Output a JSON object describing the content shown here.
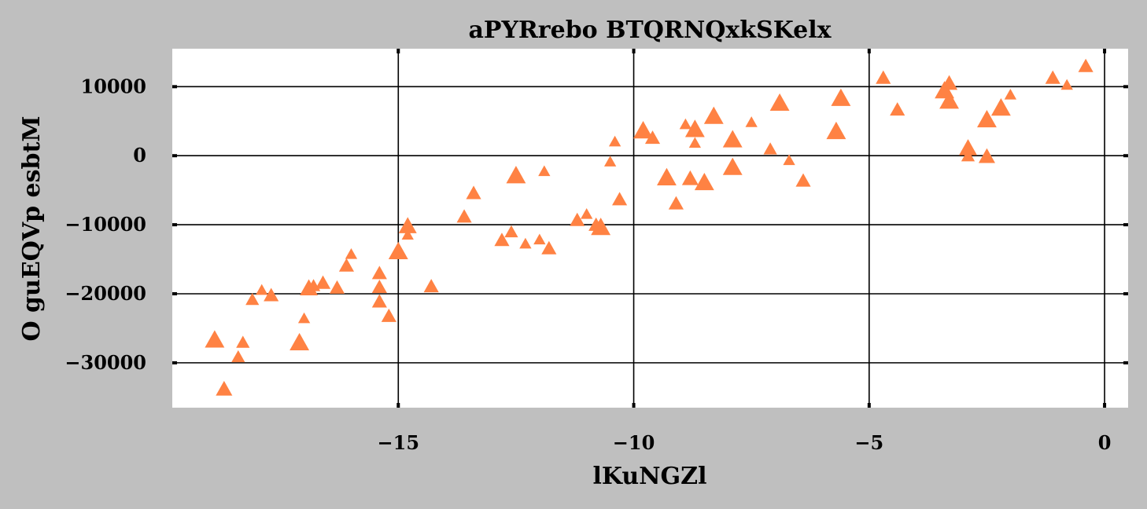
{
  "chart_data": {
    "type": "scatter",
    "title": "aPYRrebo  BTQRNQxkSKelx",
    "xlabel": "lKuNGZl",
    "ylabel": "O guEQVp esbtM",
    "xlim": [
      -19.8,
      0.5
    ],
    "ylim": [
      -36500,
      15500
    ],
    "x_ticks": [
      -15,
      -10,
      -5,
      0
    ],
    "y_ticks": [
      -30000,
      -20000,
      -10000,
      0,
      10000
    ],
    "x_tick_labels": [
      "−15",
      "−10",
      "−5",
      "0"
    ],
    "y_tick_labels": [
      "−30000",
      "−20000",
      "−10000",
      "0",
      "10000"
    ],
    "grid": true,
    "marker": "triangle",
    "color": "#ff8243",
    "background": "#bfbfbf",
    "plot_background": "#ffffff",
    "series": [
      {
        "points": [
          {
            "x": -18.9,
            "y": -26900,
            "s": 1.3
          },
          {
            "x": -18.7,
            "y": -34000,
            "s": 1.1
          },
          {
            "x": -18.4,
            "y": -29300,
            "s": 0.9
          },
          {
            "x": -18.3,
            "y": -27200,
            "s": 0.9
          },
          {
            "x": -18.1,
            "y": -21000,
            "s": 0.9
          },
          {
            "x": -17.9,
            "y": -19600,
            "s": 0.8
          },
          {
            "x": -17.7,
            "y": -20400,
            "s": 1.0
          },
          {
            "x": -17.1,
            "y": -27300,
            "s": 1.3
          },
          {
            "x": -17.0,
            "y": -23700,
            "s": 0.8
          },
          {
            "x": -16.9,
            "y": -19400,
            "s": 1.2
          },
          {
            "x": -16.8,
            "y": -19000,
            "s": 0.9
          },
          {
            "x": -16.6,
            "y": -18600,
            "s": 1.0
          },
          {
            "x": -16.3,
            "y": -19300,
            "s": 1.0
          },
          {
            "x": -16.1,
            "y": -16100,
            "s": 1.0
          },
          {
            "x": -16.0,
            "y": -14400,
            "s": 0.8
          },
          {
            "x": -15.4,
            "y": -17200,
            "s": 1.0
          },
          {
            "x": -15.4,
            "y": -19200,
            "s": 1.0
          },
          {
            "x": -15.4,
            "y": -21300,
            "s": 1.0
          },
          {
            "x": -15.2,
            "y": -23400,
            "s": 1.0
          },
          {
            "x": -15.0,
            "y": -14100,
            "s": 1.3
          },
          {
            "x": -14.8,
            "y": -10400,
            "s": 1.2
          },
          {
            "x": -14.8,
            "y": -11600,
            "s": 0.8
          },
          {
            "x": -14.3,
            "y": -19100,
            "s": 1.0
          },
          {
            "x": -13.6,
            "y": -9000,
            "s": 1.0
          },
          {
            "x": -13.4,
            "y": -5600,
            "s": 1.0
          },
          {
            "x": -12.8,
            "y": -12400,
            "s": 1.0
          },
          {
            "x": -12.6,
            "y": -11200,
            "s": 0.9
          },
          {
            "x": -12.5,
            "y": -3100,
            "s": 1.3
          },
          {
            "x": -12.3,
            "y": -12900,
            "s": 0.8
          },
          {
            "x": -12.0,
            "y": -12300,
            "s": 0.8
          },
          {
            "x": -11.9,
            "y": -2400,
            "s": 0.8
          },
          {
            "x": -11.8,
            "y": -13600,
            "s": 1.0
          },
          {
            "x": -11.2,
            "y": -9500,
            "s": 1.0
          },
          {
            "x": -11.0,
            "y": -8600,
            "s": 0.8
          },
          {
            "x": -10.8,
            "y": -10200,
            "s": 1.0
          },
          {
            "x": -10.7,
            "y": -10600,
            "s": 1.3
          },
          {
            "x": -10.5,
            "y": -1000,
            "s": 0.8
          },
          {
            "x": -10.4,
            "y": 1900,
            "s": 0.8
          },
          {
            "x": -10.3,
            "y": -6500,
            "s": 1.0
          },
          {
            "x": -9.8,
            "y": 3400,
            "s": 1.3
          },
          {
            "x": -9.6,
            "y": 2400,
            "s": 1.0
          },
          {
            "x": -9.3,
            "y": -3400,
            "s": 1.3
          },
          {
            "x": -9.1,
            "y": -7100,
            "s": 1.0
          },
          {
            "x": -8.9,
            "y": 4400,
            "s": 0.8
          },
          {
            "x": -8.8,
            "y": -3500,
            "s": 1.1
          },
          {
            "x": -8.7,
            "y": 3600,
            "s": 1.3
          },
          {
            "x": -8.7,
            "y": 1700,
            "s": 0.8
          },
          {
            "x": -8.5,
            "y": -4100,
            "s": 1.3
          },
          {
            "x": -8.3,
            "y": 5500,
            "s": 1.3
          },
          {
            "x": -7.9,
            "y": 2100,
            "s": 1.3
          },
          {
            "x": -7.9,
            "y": -1900,
            "s": 1.3
          },
          {
            "x": -7.5,
            "y": 4700,
            "s": 0.8
          },
          {
            "x": -7.1,
            "y": 800,
            "s": 0.9
          },
          {
            "x": -6.9,
            "y": 7400,
            "s": 1.3
          },
          {
            "x": -6.7,
            "y": -800,
            "s": 0.8
          },
          {
            "x": -6.4,
            "y": -3800,
            "s": 1.0
          },
          {
            "x": -5.7,
            "y": 3300,
            "s": 1.3
          },
          {
            "x": -5.6,
            "y": 8100,
            "s": 1.3
          },
          {
            "x": -4.7,
            "y": 11100,
            "s": 1.0
          },
          {
            "x": -4.4,
            "y": 6500,
            "s": 1.0
          },
          {
            "x": -3.4,
            "y": 9200,
            "s": 1.3
          },
          {
            "x": -3.3,
            "y": 10300,
            "s": 1.1
          },
          {
            "x": -3.3,
            "y": 7700,
            "s": 1.3
          },
          {
            "x": -2.9,
            "y": 900,
            "s": 1.2
          },
          {
            "x": -2.9,
            "y": -200,
            "s": 0.9
          },
          {
            "x": -2.5,
            "y": -300,
            "s": 1.1
          },
          {
            "x": -2.5,
            "y": 5000,
            "s": 1.3
          },
          {
            "x": -2.2,
            "y": 6700,
            "s": 1.3
          },
          {
            "x": -2.0,
            "y": 8700,
            "s": 0.8
          },
          {
            "x": -1.1,
            "y": 11100,
            "s": 1.0
          },
          {
            "x": -0.8,
            "y": 10100,
            "s": 0.8
          },
          {
            "x": -0.4,
            "y": 12800,
            "s": 1.0
          }
        ]
      }
    ]
  }
}
